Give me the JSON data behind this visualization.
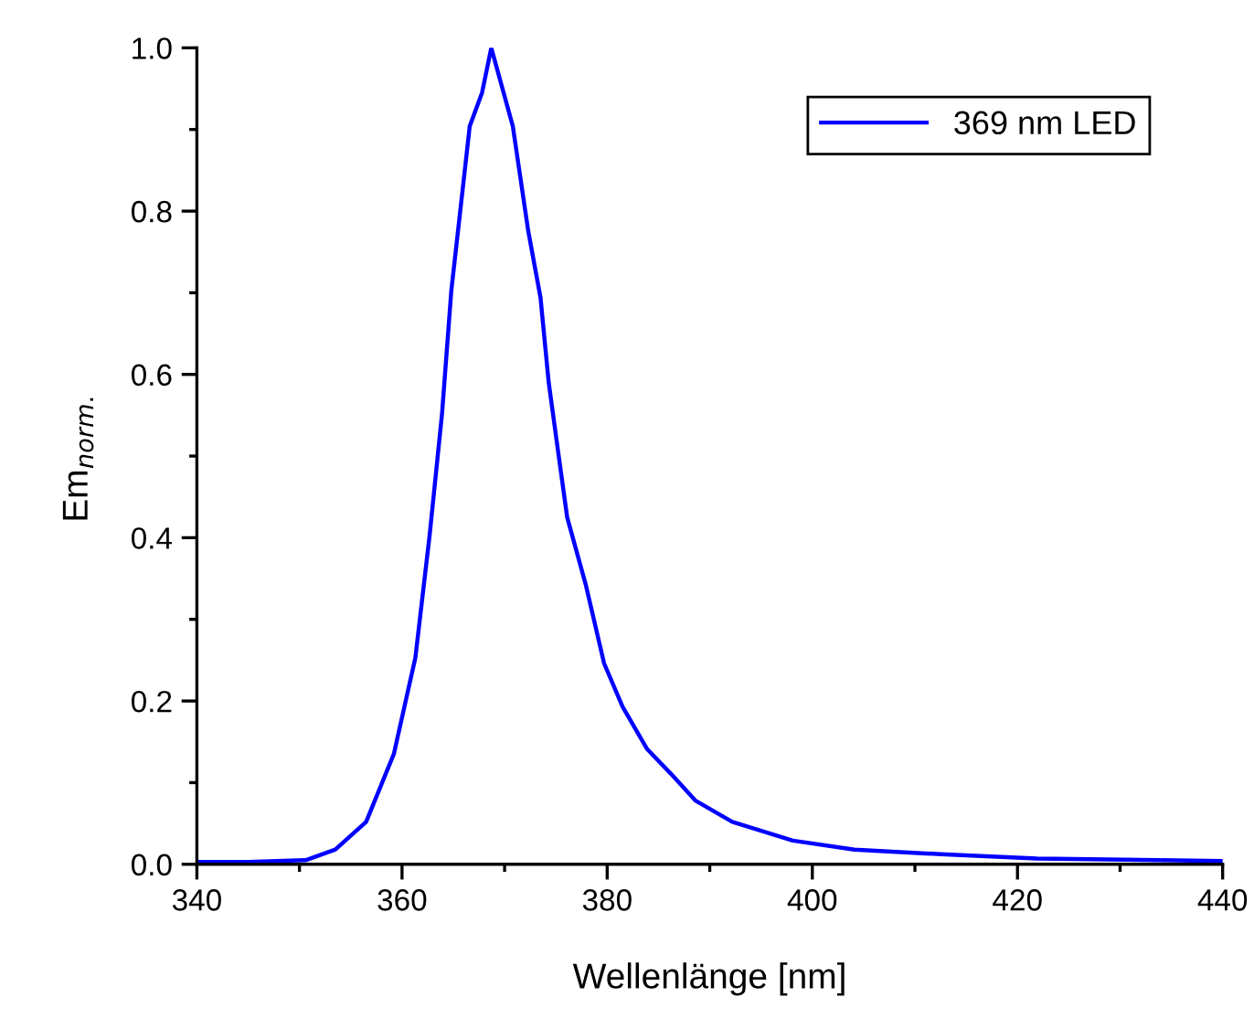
{
  "chart_data": {
    "type": "line",
    "xlabel": "Wellenlänge [nm]",
    "ylabel": "Em$_{norm.}$",
    "x": [
      340,
      345,
      350.6,
      353.5,
      356.5,
      359.2,
      361.3,
      362.7,
      363.9,
      364.8,
      366.6,
      367.8,
      368.7,
      370.8,
      372.3,
      373.5,
      374.3,
      375.2,
      376.1,
      377.9,
      379.7,
      381.5,
      383.9,
      386.2,
      388.6,
      392.2,
      398.1,
      404.1,
      413.0,
      421.9,
      433.8,
      440
    ],
    "series": [
      {
        "name": "369 nm LED",
        "color": "#0000ff",
        "values": [
          0.003,
          0.003,
          0.005,
          0.018,
          0.052,
          0.135,
          0.253,
          0.404,
          0.552,
          0.702,
          0.904,
          0.945,
          1.0,
          0.904,
          0.776,
          0.694,
          0.59,
          0.507,
          0.425,
          0.343,
          0.246,
          0.193,
          0.141,
          0.111,
          0.078,
          0.052,
          0.029,
          0.018,
          0.012,
          0.007,
          0.005,
          0.004
        ]
      }
    ],
    "xlim": [
      340,
      440
    ],
    "ylim": [
      0,
      1.0
    ],
    "xticks": [
      340,
      360,
      380,
      400,
      420,
      440
    ],
    "yticks": [
      {
        "value": 0,
        "label": "0.0"
      },
      {
        "value": 0.2,
        "label": "0.2"
      },
      {
        "value": 0.4,
        "label": "0.4"
      },
      {
        "value": 0.6,
        "label": "0.6"
      },
      {
        "value": 0.8,
        "label": "0.8"
      },
      {
        "value": 1.0,
        "label": "1.0"
      }
    ],
    "legend": "top right",
    "grid": false,
    "marker": "none",
    "line_style": "solid"
  }
}
